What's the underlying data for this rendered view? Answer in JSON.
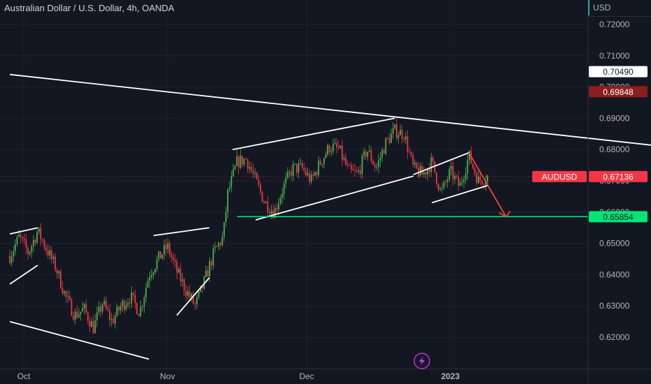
{
  "header": {
    "title": "Australian Dollar / U.S. Dollar, 4h, OANDA",
    "currency": "USD"
  },
  "badges": {
    "symbol": "AUDUSD",
    "price": "0.67136",
    "level_high": "0.70490",
    "level_mid": "0.69848",
    "level_support": "0.65854"
  },
  "colors": {
    "background": "#131722",
    "up": "#26a69a",
    "down": "#ef5350",
    "candle_up": "#4caf50",
    "candle_down": "#f23645",
    "support": "#00e676",
    "arrow": "#f44336"
  },
  "chart_data": {
    "type": "candlestick",
    "title": "Australian Dollar / U.S. Dollar, 4h, OANDA",
    "ylim": [
      0.612,
      0.7255
    ],
    "y_ticks": [
      "0.72000",
      "0.71000",
      "0.70000",
      "0.69000",
      "0.68000",
      "0.67000",
      "0.66000",
      "0.65000",
      "0.64000",
      "0.63000",
      "0.62000"
    ],
    "x_ticks": [
      "Oct",
      "Nov",
      "Dec",
      "2023"
    ],
    "x_tick_positions": [
      "2022-10-01",
      "2022-11-01",
      "2022-12-01",
      "2023-01-01"
    ],
    "price_path": [
      [
        "2022-09-28",
        0.646
      ],
      [
        "2022-09-30",
        0.652
      ],
      [
        "2022-10-02",
        0.647
      ],
      [
        "2022-10-04",
        0.654
      ],
      [
        "2022-10-06",
        0.648
      ],
      [
        "2022-10-08",
        0.642
      ],
      [
        "2022-10-10",
        0.633
      ],
      [
        "2022-10-12",
        0.627
      ],
      [
        "2022-10-14",
        0.629
      ],
      [
        "2022-10-16",
        0.623
      ],
      [
        "2022-10-18",
        0.631
      ],
      [
        "2022-10-20",
        0.625
      ],
      [
        "2022-10-22",
        0.63
      ],
      [
        "2022-10-24",
        0.633
      ],
      [
        "2022-10-26",
        0.628
      ],
      [
        "2022-10-28",
        0.64
      ],
      [
        "2022-10-30",
        0.645
      ],
      [
        "2022-11-01",
        0.649
      ],
      [
        "2022-11-03",
        0.641
      ],
      [
        "2022-11-05",
        0.635
      ],
      [
        "2022-11-07",
        0.63
      ],
      [
        "2022-11-09",
        0.638
      ],
      [
        "2022-11-11",
        0.647
      ],
      [
        "2022-11-13",
        0.652
      ],
      [
        "2022-11-14",
        0.666
      ],
      [
        "2022-11-16",
        0.676
      ],
      [
        "2022-11-18",
        0.677
      ],
      [
        "2022-11-20",
        0.67
      ],
      [
        "2022-11-22",
        0.663
      ],
      [
        "2022-11-24",
        0.66
      ],
      [
        "2022-11-26",
        0.668
      ],
      [
        "2022-11-28",
        0.674
      ],
      [
        "2022-11-30",
        0.674
      ],
      [
        "2022-12-02",
        0.67
      ],
      [
        "2022-12-04",
        0.676
      ],
      [
        "2022-12-06",
        0.681
      ],
      [
        "2022-12-08",
        0.68
      ],
      [
        "2022-12-10",
        0.673
      ],
      [
        "2022-12-12",
        0.672
      ],
      [
        "2022-12-14",
        0.68
      ],
      [
        "2022-12-16",
        0.674
      ],
      [
        "2022-12-18",
        0.682
      ],
      [
        "2022-12-20",
        0.686
      ],
      [
        "2022-12-22",
        0.685
      ],
      [
        "2022-12-24",
        0.674
      ],
      [
        "2022-12-26",
        0.672
      ],
      [
        "2022-12-28",
        0.676
      ],
      [
        "2022-12-30",
        0.666
      ],
      [
        "2023-01-01",
        0.673
      ],
      [
        "2023-01-03",
        0.668
      ],
      [
        "2023-01-05",
        0.678
      ],
      [
        "2023-01-07",
        0.67
      ],
      [
        "2023-01-09",
        0.6714
      ]
    ],
    "drawings": {
      "trendlines": [
        {
          "name": "upper-descending-trendline",
          "points": [
            [
              "2022-09-28",
              0.704
            ],
            [
              "2023-02-22",
              0.68
            ]
          ]
        },
        {
          "name": "lower-descending-trendline",
          "points": [
            [
              "2022-09-28",
              0.625
            ],
            [
              "2022-10-28",
              0.613
            ]
          ]
        },
        {
          "name": "oct-flag-top",
          "points": [
            [
              "2022-09-28",
              0.653
            ],
            [
              "2022-10-04",
              0.655
            ]
          ]
        },
        {
          "name": "oct-flag-bottom",
          "points": [
            [
              "2022-09-28",
              0.637
            ],
            [
              "2022-10-04",
              0.643
            ]
          ]
        },
        {
          "name": "nov-wedge-top",
          "points": [
            [
              "2022-10-29",
              0.6525
            ],
            [
              "2022-11-10",
              0.655
            ]
          ]
        },
        {
          "name": "nov-wedge-bottom",
          "points": [
            [
              "2022-11-03",
              0.627
            ],
            [
              "2022-11-10",
              0.639
            ]
          ]
        },
        {
          "name": "channel-top",
          "points": [
            [
              "2022-11-15",
              0.68
            ],
            [
              "2022-12-20",
              0.69
            ]
          ]
        },
        {
          "name": "channel-bottom",
          "points": [
            [
              "2022-11-20",
              0.6575
            ],
            [
              "2022-12-24",
              0.6715
            ]
          ]
        },
        {
          "name": "flag-top",
          "points": [
            [
              "2022-12-24",
              0.672
            ],
            [
              "2023-01-05",
              0.679
            ]
          ]
        },
        {
          "name": "flag-bottom",
          "points": [
            [
              "2022-12-28",
              0.663
            ],
            [
              "2023-01-09",
              0.6685
            ]
          ]
        }
      ],
      "support_line": {
        "value": 0.65854,
        "from": "2022-11-16",
        "to": "2023-01-31"
      },
      "projection_arrow": {
        "from": [
          "2023-01-05",
          0.679
        ],
        "to": [
          "2023-01-13",
          0.6585
        ]
      }
    },
    "current_price": 0.67136,
    "grid": true
  }
}
